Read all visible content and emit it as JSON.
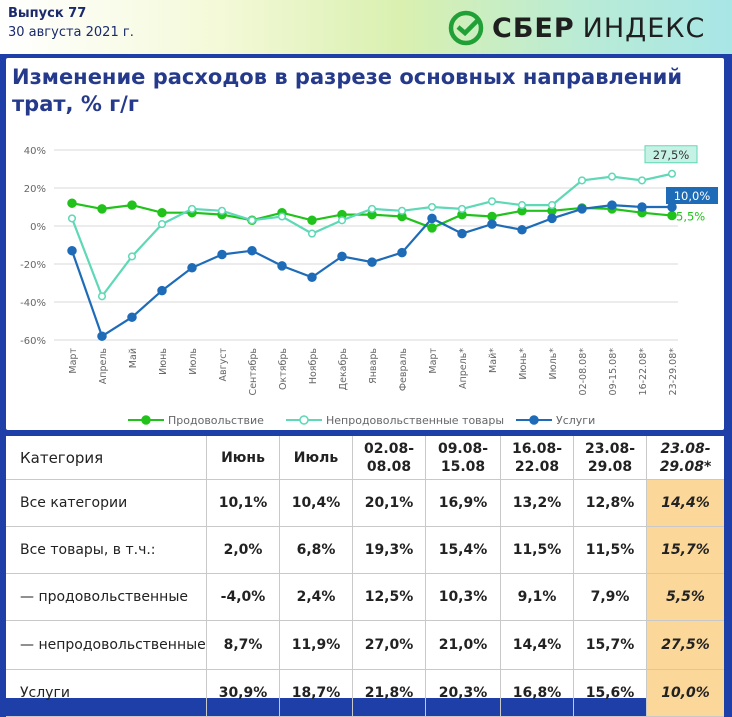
{
  "header": {
    "issue": "Выпуск 77",
    "date": "30 августа 2021 г.",
    "logo_bold": "СБЕР",
    "logo_light": "ИНДЕКС",
    "logo_color": "#21a038"
  },
  "chart_data": {
    "type": "line",
    "title": "Изменение расходов в разрезе основных направлений трат, % г/г",
    "categories": [
      "Март",
      "Апрель",
      "Май",
      "Июнь",
      "Июль",
      "Август",
      "Сентябрь",
      "Октябрь",
      "Ноябрь",
      "Декабрь",
      "Январь",
      "Февраль",
      "Март",
      "Апрель*",
      "Май*",
      "Июнь*",
      "Июль*",
      "02-08.08*",
      "09-15.08*",
      "16-22.08*",
      "23-29.08*"
    ],
    "ylim": [
      -60,
      40
    ],
    "yticks": [
      "40%",
      "20%",
      "0%",
      "-20%",
      "-40%",
      "-60%"
    ],
    "ytick_values": [
      40,
      20,
      0,
      -20,
      -40,
      -60
    ],
    "grid": true,
    "legend_position": "bottom",
    "series": [
      {
        "name": "Продовольствие",
        "color": "#21c21b",
        "marker": "filled",
        "values": [
          12,
          9,
          11,
          7,
          7,
          6,
          3,
          7,
          3,
          6,
          6,
          5,
          -1,
          6,
          5,
          8,
          8,
          9.5,
          9,
          7,
          5.5
        ],
        "end_label": "5,5%"
      },
      {
        "name": "Непродовольственные товары",
        "color": "#5ed8b6",
        "marker": "hollow",
        "values": [
          4,
          -37,
          -16,
          1,
          9,
          8,
          3,
          5,
          -4,
          3,
          9,
          8,
          10,
          9,
          13,
          11,
          11,
          24,
          26,
          24,
          27.5
        ],
        "end_label": "27,5%"
      },
      {
        "name": "Услуги",
        "color": "#1e6bb8",
        "marker": "filled",
        "values": [
          -13,
          -58,
          -48,
          -34,
          -22,
          -15,
          -13,
          -21,
          -27,
          -16,
          -19,
          -14,
          4,
          -4,
          1,
          -2,
          4,
          9,
          11,
          10,
          10
        ],
        "end_label": "10,0%"
      }
    ]
  },
  "table": {
    "headers": [
      "Категория",
      "Июнь",
      "Июль",
      "02.08-08.08",
      "09.08-15.08",
      "16.08-22.08",
      "23.08-29.08",
      "23.08-29.08*"
    ],
    "rows": [
      {
        "category": "Все категории",
        "values": [
          "10,1%",
          "10,4%",
          "20,1%",
          "16,9%",
          "13,2%",
          "12,8%",
          "14,4%"
        ]
      },
      {
        "category": "Все товары, в т.ч.:",
        "values": [
          "2,0%",
          "6,8%",
          "19,3%",
          "15,4%",
          "11,5%",
          "11,5%",
          "15,7%"
        ]
      },
      {
        "category": "— продовольственные",
        "values": [
          "-4,0%",
          "2,4%",
          "12,5%",
          "10,3%",
          "9,1%",
          "7,9%",
          "5,5%"
        ]
      },
      {
        "category": "— непродовольственные",
        "values": [
          "8,7%",
          "11,9%",
          "27,0%",
          "21,0%",
          "14,4%",
          "15,7%",
          "27,5%"
        ]
      },
      {
        "category": "Услуги",
        "values": [
          "30,9%",
          "18,7%",
          "21,8%",
          "20,3%",
          "16,8%",
          "15,6%",
          "10,0%"
        ]
      }
    ],
    "highlight_color": "#fbd79a"
  }
}
